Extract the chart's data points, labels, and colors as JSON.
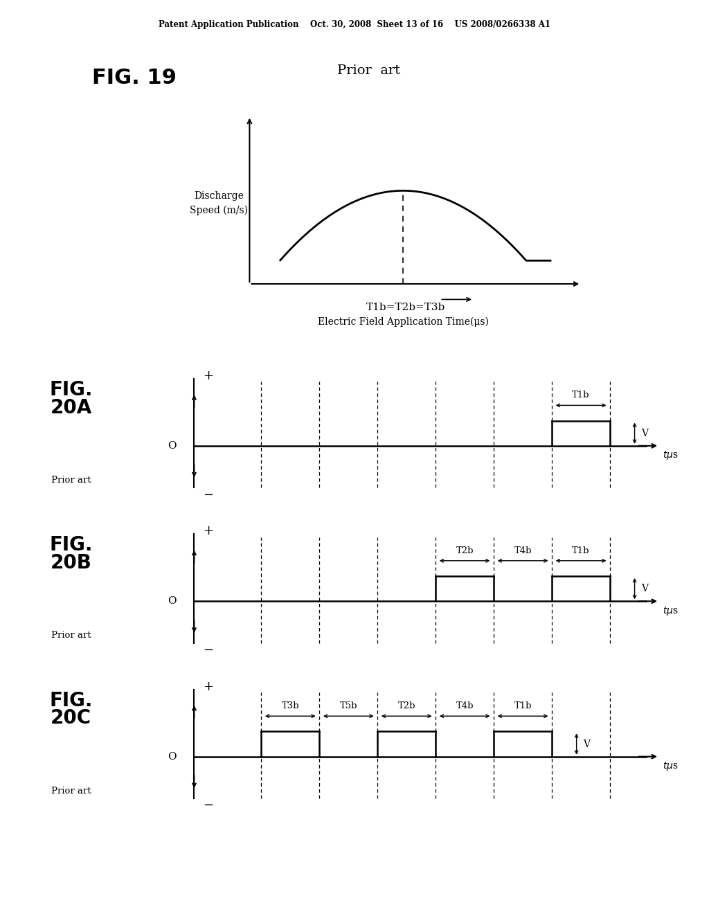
{
  "bg_color": "#ffffff",
  "header": "Patent Application Publication    Oct. 30, 2008  Sheet 13 of 16    US 2008/0266338 A1",
  "fig19_title": "Prior  art",
  "fig19_fig_label": "FIG. 19",
  "fig19_ylabel": "Discharge\nSpeed (m/s)",
  "fig19_xlabel": "T1b=T2b=T3b",
  "fig19_xlabel2": "Electric Field Application Time(μs)",
  "panel_labels": [
    "FIG.\n20A",
    "FIG.\n20B",
    "FIG.\n20C"
  ],
  "prior_art": "Prior art",
  "dash_x": [
    1.5,
    2.8,
    4.1,
    5.4,
    6.7,
    8.0,
    9.3
  ],
  "pulses_20a": [
    [
      8.0,
      9.3,
      "T1b",
      1
    ]
  ],
  "pulses_20b": [
    [
      5.4,
      6.7,
      "T2b",
      1
    ],
    [
      6.7,
      8.0,
      "T4b",
      0
    ],
    [
      8.0,
      9.3,
      "T1b",
      1
    ]
  ],
  "pulses_20c": [
    [
      1.5,
      2.8,
      "T3b",
      1
    ],
    [
      2.8,
      4.1,
      "T5b",
      0
    ],
    [
      4.1,
      5.4,
      "T2b",
      1
    ],
    [
      5.4,
      6.7,
      "T4b",
      0
    ],
    [
      6.7,
      8.0,
      "T1b",
      1
    ]
  ],
  "xlim": [
    -0.3,
    10.8
  ],
  "ylim_timing": [
    -2.2,
    3.2
  ],
  "pulse_height": 0.9,
  "zero_y": 0.0
}
